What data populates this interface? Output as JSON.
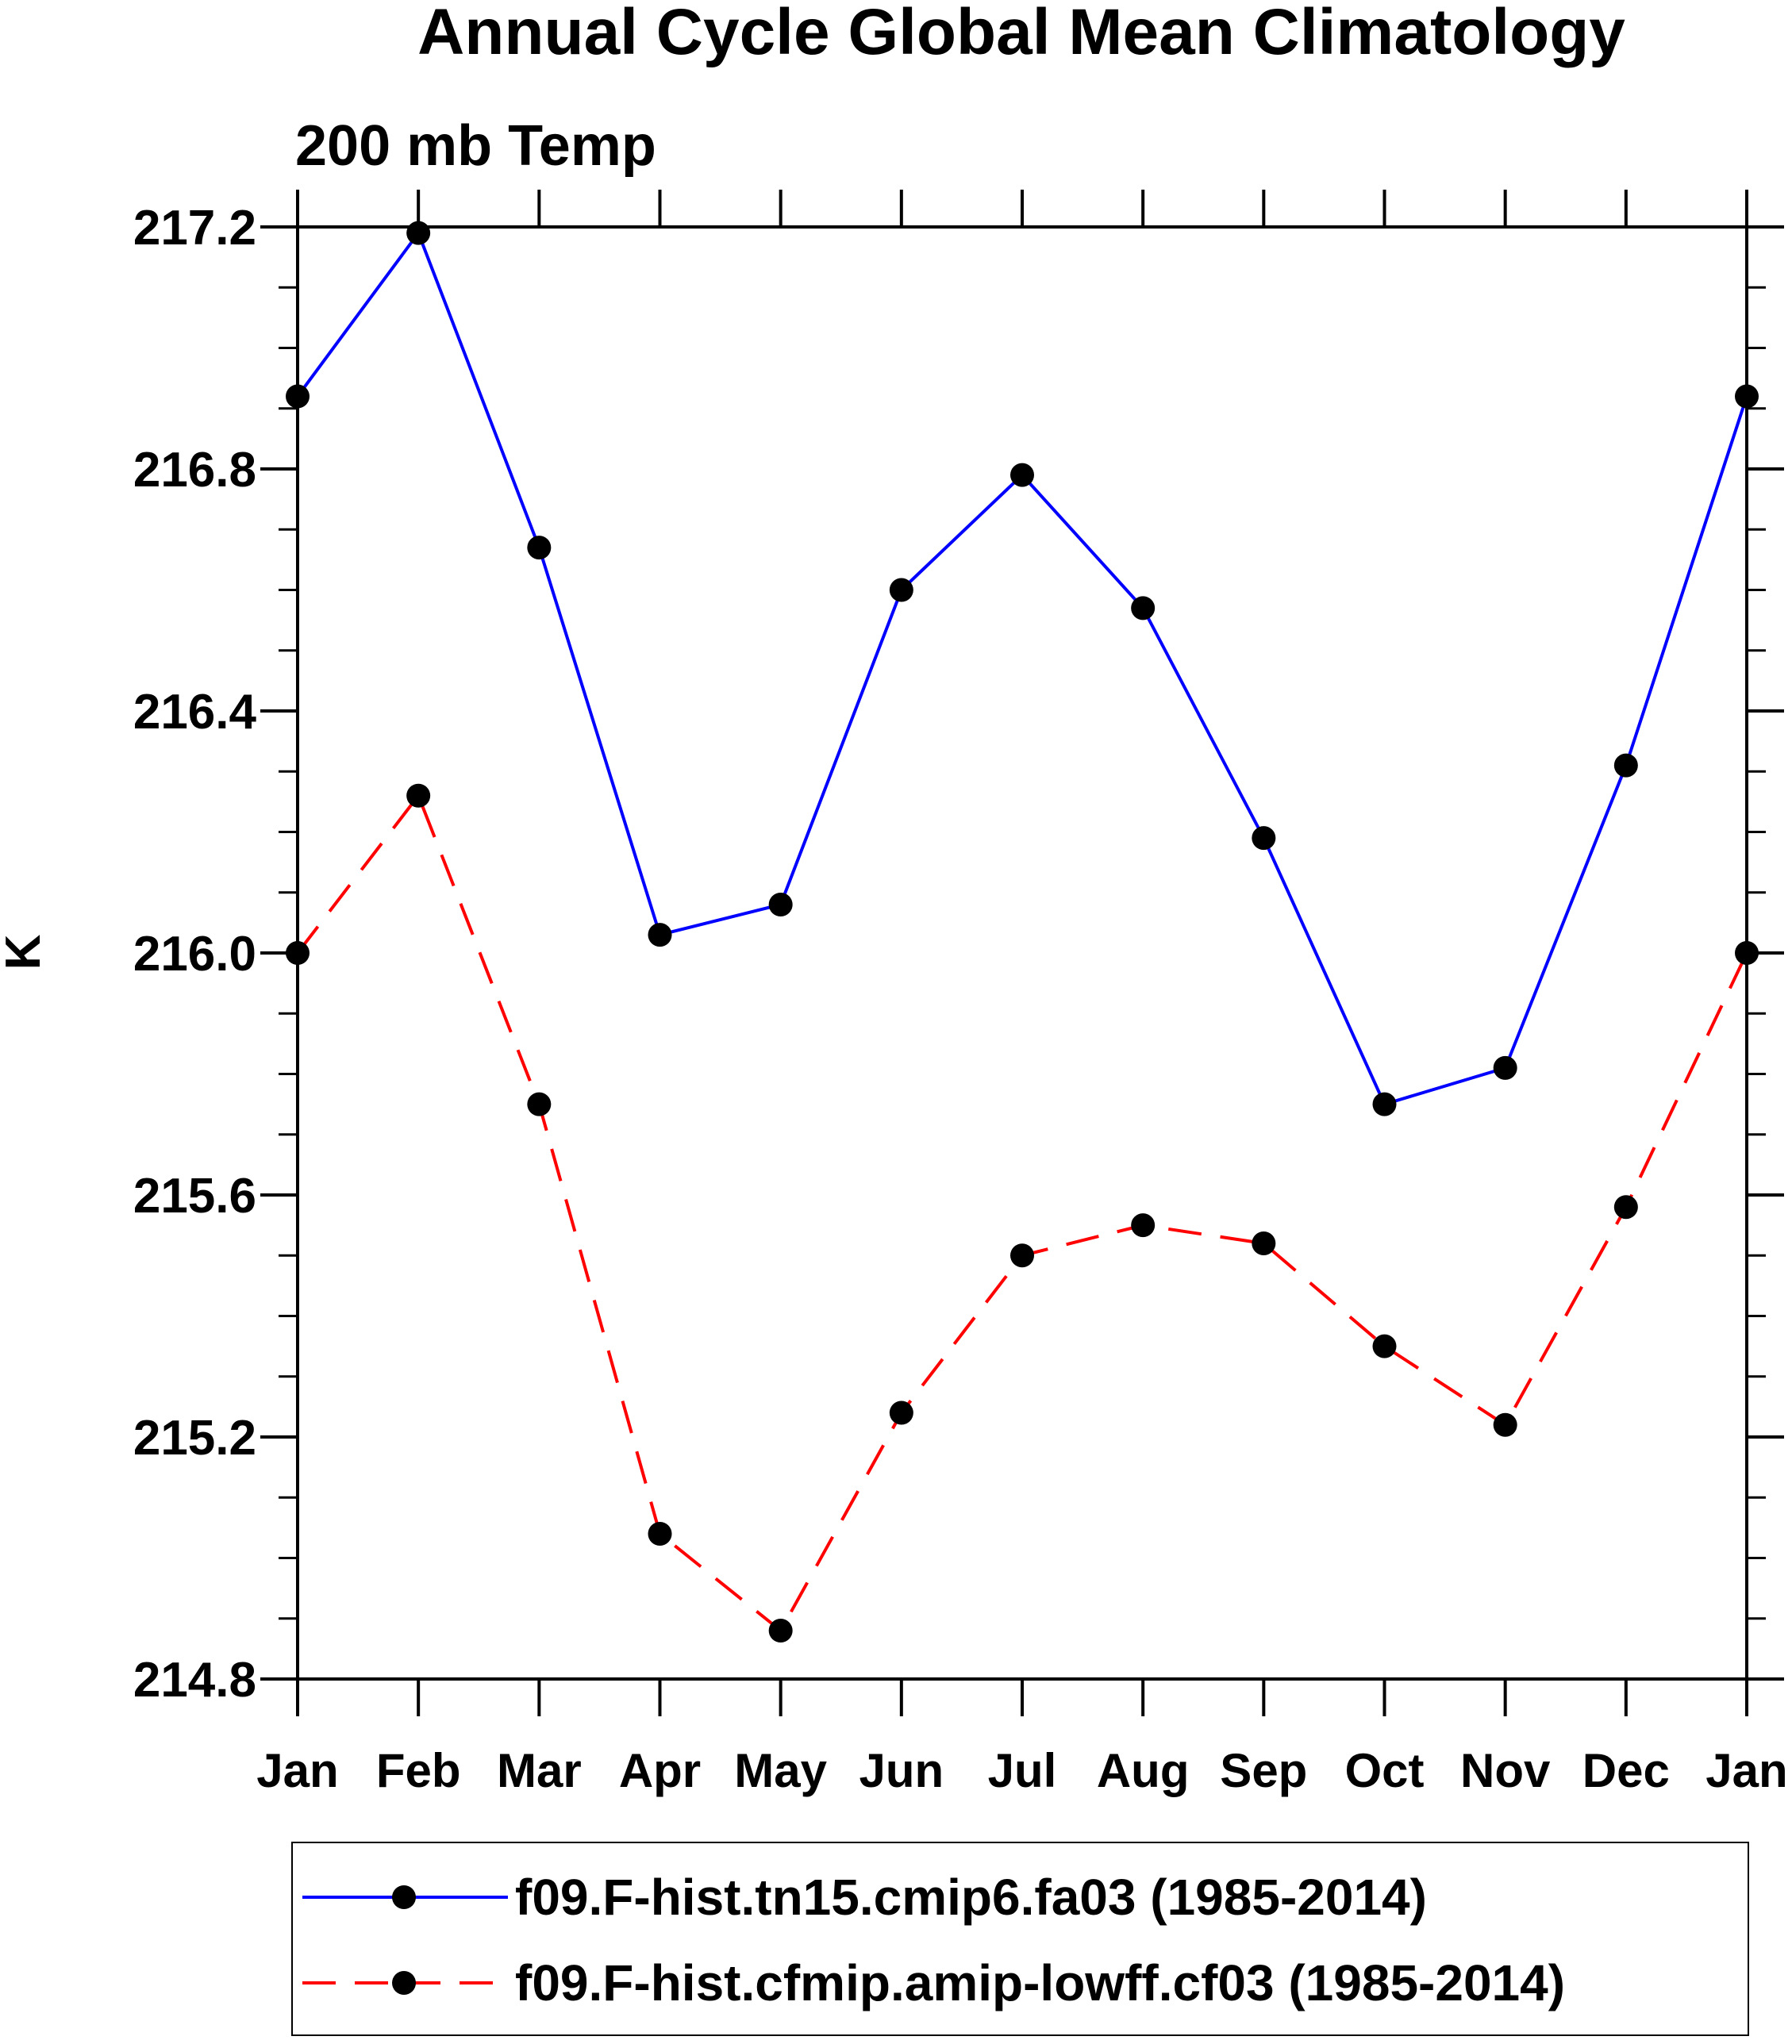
{
  "chart_data": {
    "type": "line",
    "title": "Annual Cycle Global Mean Climatology",
    "subtitle": "200 mb Temp",
    "xlabel": "",
    "ylabel": "K",
    "categories": [
      "Jan",
      "Feb",
      "Mar",
      "Apr",
      "May",
      "Jun",
      "Jul",
      "Aug",
      "Sep",
      "Oct",
      "Nov",
      "Dec",
      "Jan"
    ],
    "ylim": [
      214.8,
      217.2
    ],
    "yticks": [
      "214.8",
      "215.2",
      "215.6",
      "216.0",
      "216.4",
      "216.8",
      "217.2"
    ],
    "yminor_step": 0.1,
    "grid": false,
    "legend_position": "bottom",
    "series": [
      {
        "name": "f09.F-hist.tn15.cmip6.fa03 (1985-2014)",
        "color": "#0000ff",
        "dash": "solid",
        "values": [
          216.92,
          217.19,
          216.67,
          216.03,
          216.08,
          216.6,
          216.79,
          216.57,
          216.19,
          215.75,
          215.81,
          216.31,
          216.92
        ]
      },
      {
        "name": "f09.F-hist.cfmip.amip-lowff.cf03 (1985-2014)",
        "color": "#ff0000",
        "dash": "dashed",
        "values": [
          216.0,
          216.26,
          215.75,
          215.04,
          214.88,
          215.24,
          215.5,
          215.55,
          215.52,
          215.35,
          215.22,
          215.58,
          216.0
        ]
      }
    ]
  }
}
